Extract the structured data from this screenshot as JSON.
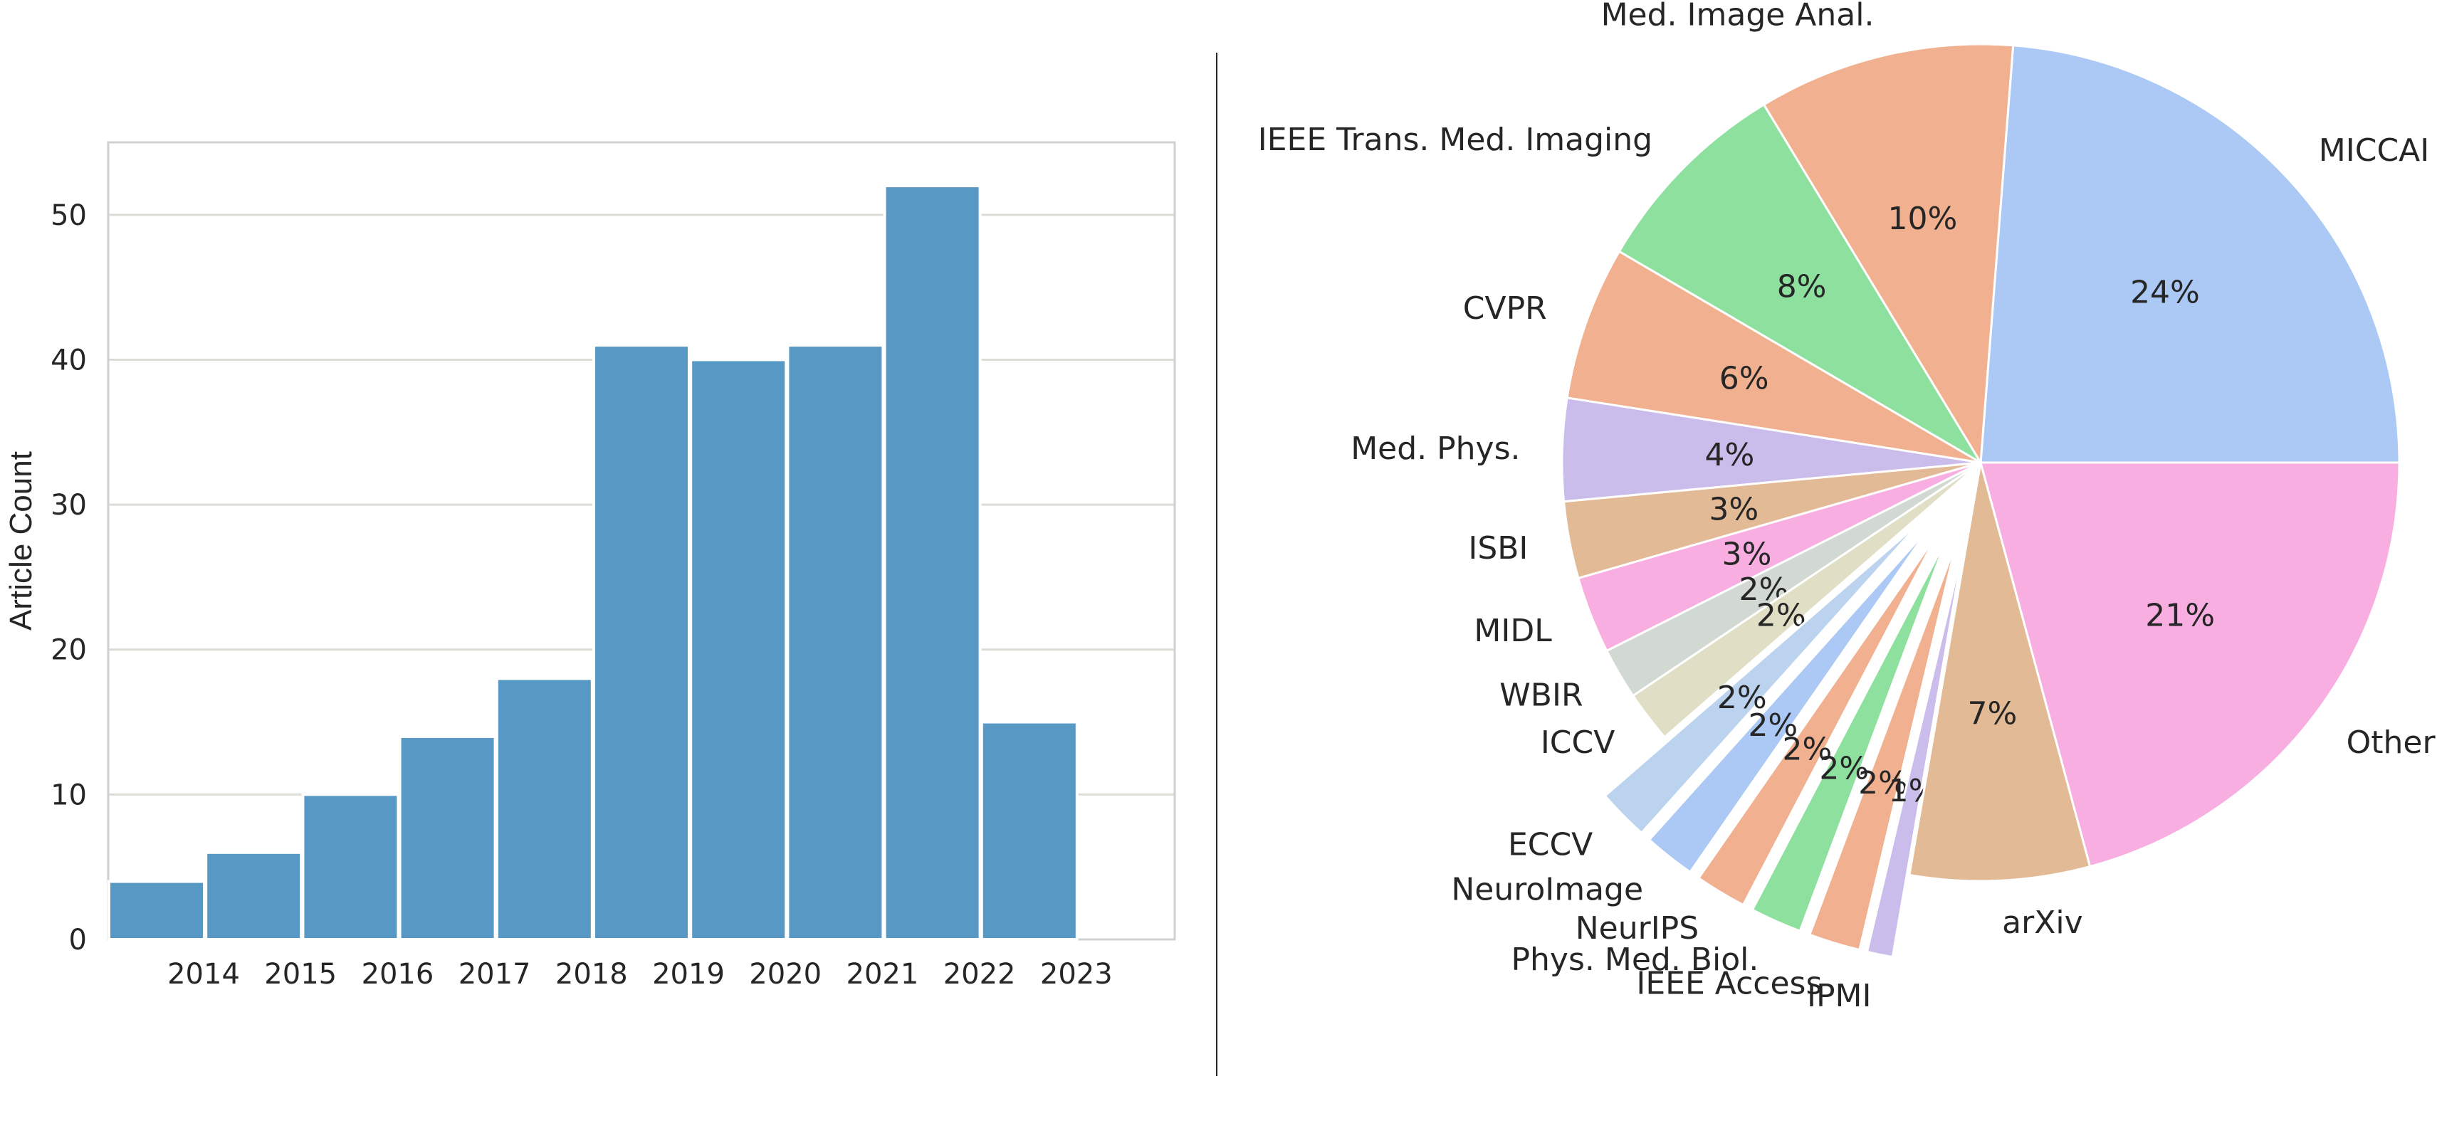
{
  "chart_data": [
    {
      "type": "bar",
      "categories": [
        "2014",
        "2015",
        "2016",
        "2017",
        "2018",
        "2019",
        "2020",
        "2021",
        "2022",
        "2023"
      ],
      "values": [
        4,
        6,
        10,
        14,
        18,
        41,
        40,
        41,
        52,
        15
      ],
      "title": "",
      "xlabel": "",
      "ylabel": "Article Count",
      "ylim": [
        0,
        55
      ],
      "yticks": [
        0,
        10,
        20,
        30,
        40,
        50
      ],
      "grid": "horizontal",
      "bar_color": "#5898c5"
    },
    {
      "type": "pie",
      "start_angle": 0,
      "direction": "counterclockwise",
      "slices": [
        {
          "label": "MICCAI",
          "value": 24,
          "pct_label": "24%",
          "color": "#abc9f4",
          "explode": false
        },
        {
          "label": "Med. Image Anal.",
          "value": 10,
          "pct_label": "10%",
          "color": "#f1b08f",
          "explode": false
        },
        {
          "label": "IEEE Trans. Med. Imaging",
          "value": 8,
          "pct_label": "8%",
          "color": "#8ee09f",
          "explode": false
        },
        {
          "label": "CVPR",
          "value": 6,
          "pct_label": "6%",
          "color": "#f1b08f",
          "explode": false
        },
        {
          "label": "Med. Phys.",
          "value": 4,
          "pct_label": "4%",
          "color": "#cabceb",
          "explode": false
        },
        {
          "label": "ISBI",
          "value": 3,
          "pct_label": "3%",
          "color": "#e2ba96",
          "explode": false
        },
        {
          "label": "MIDL",
          "value": 3,
          "pct_label": "3%",
          "color": "#f8aee0",
          "explode": false
        },
        {
          "label": "WBIR",
          "value": 2,
          "pct_label": "2%",
          "color": "#d2d9d2",
          "explode": false
        },
        {
          "label": "ICCV",
          "value": 2,
          "pct_label": "2%",
          "color": "#e0dfc6",
          "explode": false
        },
        {
          "label": "ECCV",
          "value": 2,
          "pct_label": "2%",
          "color": "#bcd3f0",
          "explode": true
        },
        {
          "label": "NeuroImage",
          "value": 2,
          "pct_label": "2%",
          "color": "#abc9f4",
          "explode": true
        },
        {
          "label": "NeurIPS",
          "value": 2,
          "pct_label": "2%",
          "color": "#f1b08f",
          "explode": true
        },
        {
          "label": "Phys. Med. Biol.",
          "value": 2,
          "pct_label": "2%",
          "color": "#8ee09f",
          "explode": true
        },
        {
          "label": "IEEE Access",
          "value": 2,
          "pct_label": "2%",
          "color": "#f1b08f",
          "explode": true
        },
        {
          "label": "IPMI",
          "value": 1,
          "pct_label": "1%",
          "color": "#cabceb",
          "explode": true
        },
        {
          "label": "arXiv",
          "value": 7,
          "pct_label": "7%",
          "color": "#e2ba96",
          "explode": false
        },
        {
          "label": "Other",
          "value": 21,
          "pct_label": "21%",
          "color": "#f8aee0",
          "explode": false
        }
      ]
    }
  ]
}
